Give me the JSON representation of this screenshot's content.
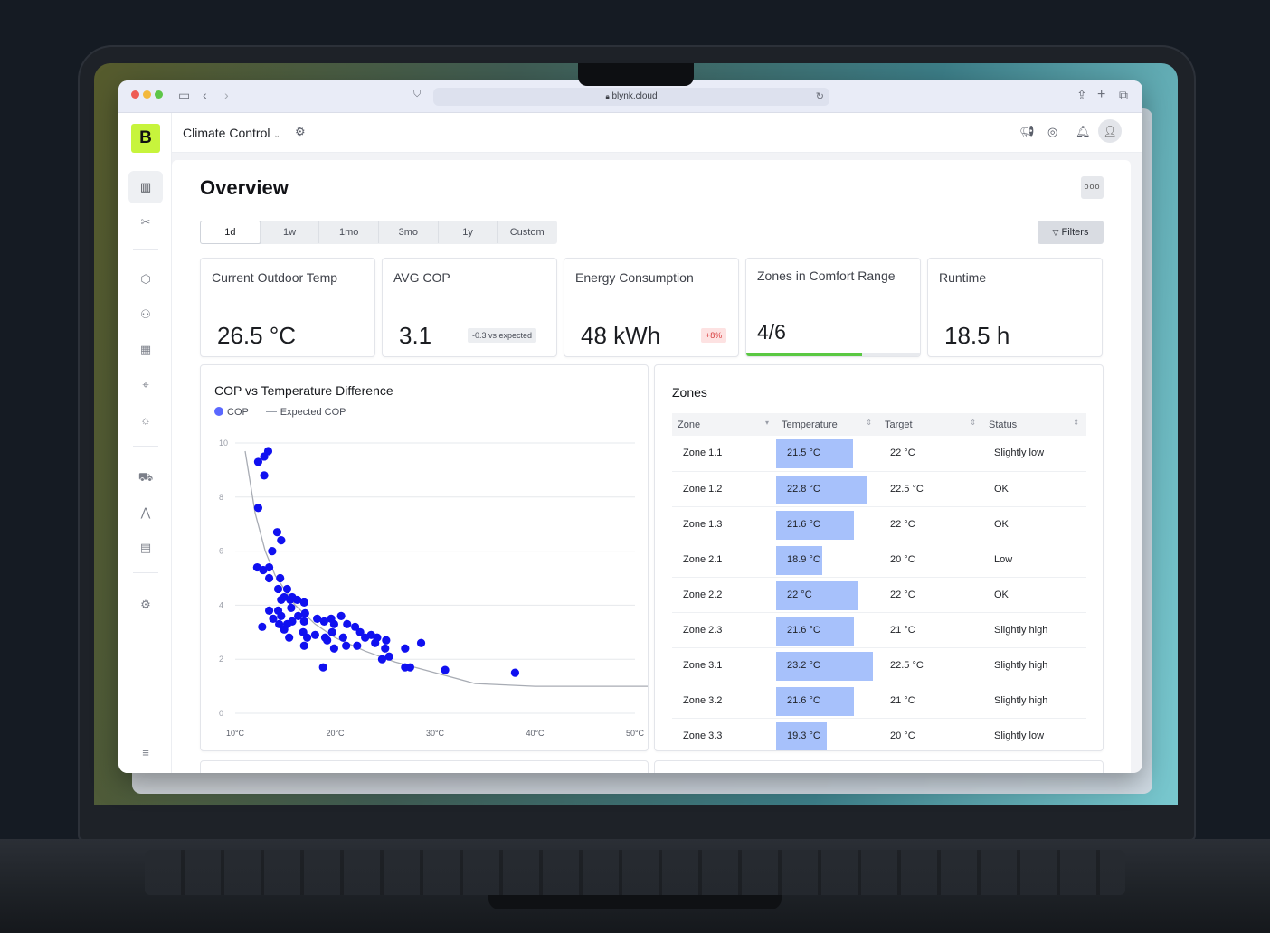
{
  "browser": {
    "url": "blynk.cloud"
  },
  "app": {
    "logo": "B",
    "title": "Climate Control",
    "page_title": "Overview",
    "filters_label": "Filters",
    "more_label": "ooo"
  },
  "ranges": [
    "1d",
    "1w",
    "1mo",
    "3mo",
    "1y",
    "Custom"
  ],
  "active_range": "1d",
  "kpis": {
    "outdoor": {
      "label": "Current Outdoor Temp",
      "value": "26.5 °C"
    },
    "cop": {
      "label": "AVG COP",
      "value": "3.1",
      "badge": "-0.3 vs expected"
    },
    "energy": {
      "label": "Energy Consumption",
      "value": "48 kWh",
      "badge": "+8%"
    },
    "zones": {
      "label": "Zones in Comfort Range",
      "value": "4/6",
      "progress": 0.6667
    },
    "runtime": {
      "label": "Runtime",
      "value": "18.5 h"
    }
  },
  "chart_data": {
    "type": "scatter",
    "title": "COP vs Temperature Difference",
    "series": [
      {
        "name": "COP",
        "color": "#1010f0",
        "points": [
          [
            12.3,
            9.3
          ],
          [
            12.9,
            9.5
          ],
          [
            13.3,
            9.7
          ],
          [
            12.9,
            8.8
          ],
          [
            12.3,
            7.6
          ],
          [
            14.2,
            6.7
          ],
          [
            14.6,
            6.4
          ],
          [
            13.7,
            6.0
          ],
          [
            12.2,
            5.4
          ],
          [
            12.8,
            5.3
          ],
          [
            13.4,
            5.4
          ],
          [
            13.4,
            5.0
          ],
          [
            14.5,
            5.0
          ],
          [
            14.3,
            4.6
          ],
          [
            15.2,
            4.6
          ],
          [
            14.6,
            4.2
          ],
          [
            14.9,
            4.3
          ],
          [
            15.5,
            4.2
          ],
          [
            15.7,
            4.3
          ],
          [
            16.2,
            4.2
          ],
          [
            16.9,
            4.1
          ],
          [
            15.6,
            3.9
          ],
          [
            14.3,
            3.8
          ],
          [
            13.4,
            3.8
          ],
          [
            13.8,
            3.5
          ],
          [
            14.6,
            3.6
          ],
          [
            14.4,
            3.3
          ],
          [
            15.2,
            3.3
          ],
          [
            15.7,
            3.4
          ],
          [
            16.3,
            3.6
          ],
          [
            17.0,
            3.7
          ],
          [
            18.2,
            3.5
          ],
          [
            19.6,
            3.5
          ],
          [
            20.6,
            3.6
          ],
          [
            12.7,
            3.2
          ],
          [
            14.9,
            3.1
          ],
          [
            16.9,
            3.4
          ],
          [
            18.9,
            3.4
          ],
          [
            19.9,
            3.3
          ],
          [
            21.2,
            3.3
          ],
          [
            22.0,
            3.2
          ],
          [
            15.4,
            2.8
          ],
          [
            16.8,
            3.0
          ],
          [
            18.0,
            2.9
          ],
          [
            19.0,
            2.8
          ],
          [
            19.7,
            3.0
          ],
          [
            20.8,
            2.8
          ],
          [
            22.5,
            3.0
          ],
          [
            23.6,
            2.9
          ],
          [
            24.2,
            2.8
          ],
          [
            25.1,
            2.7
          ],
          [
            27.0,
            2.4
          ],
          [
            28.6,
            2.6
          ],
          [
            16.9,
            2.5
          ],
          [
            17.2,
            2.8
          ],
          [
            19.2,
            2.7
          ],
          [
            19.9,
            2.4
          ],
          [
            21.1,
            2.5
          ],
          [
            22.2,
            2.5
          ],
          [
            23.0,
            2.8
          ],
          [
            24.0,
            2.6
          ],
          [
            25.0,
            2.4
          ],
          [
            25.4,
            2.1
          ],
          [
            24.7,
            2.0
          ],
          [
            27.5,
            1.7
          ],
          [
            27.0,
            1.7
          ],
          [
            18.8,
            1.7
          ],
          [
            31.0,
            1.6
          ],
          [
            38.0,
            1.5
          ]
        ]
      },
      {
        "name": "Expected COP",
        "color": "#a8acb4",
        "curve": [
          [
            11,
            9.7
          ],
          [
            12,
            7.4
          ],
          [
            13,
            6.0
          ],
          [
            14,
            5.1
          ],
          [
            16,
            4.0
          ],
          [
            18,
            3.3
          ],
          [
            20,
            2.8
          ],
          [
            23,
            2.3
          ],
          [
            26,
            1.9
          ],
          [
            30,
            1.5
          ],
          [
            34,
            1.1
          ],
          [
            40,
            1.0
          ],
          [
            47,
            1.0
          ],
          [
            52,
            1.0
          ]
        ]
      }
    ],
    "x_ticks": [
      "10°C",
      "20°C",
      "30°C",
      "40°C",
      "50°C"
    ],
    "x_tick_values": [
      10,
      20,
      30,
      40,
      50
    ],
    "y_ticks": [
      0,
      2,
      4,
      6,
      8,
      10
    ],
    "xlim": [
      10,
      50
    ],
    "ylim": [
      0,
      10
    ],
    "grid": true,
    "legend_placement": "top-left"
  },
  "zones_table": {
    "title": "Zones",
    "headers": [
      "Zone",
      "Temperature",
      "Target",
      "Status"
    ],
    "rows": [
      {
        "zone": "Zone 1.1",
        "temp": "21.5 °C",
        "temp_value": 21.5,
        "target": "22 °C",
        "status": "Slightly low"
      },
      {
        "zone": "Zone 1.2",
        "temp": "22.8 °C",
        "temp_value": 22.8,
        "target": "22.5 °C",
        "status": "OK"
      },
      {
        "zone": "Zone 1.3",
        "temp": "21.6 °C",
        "temp_value": 21.6,
        "target": "22 °C",
        "status": "OK"
      },
      {
        "zone": "Zone 2.1",
        "temp": "18.9 °C",
        "temp_value": 18.9,
        "target": "20 °C",
        "status": "Low"
      },
      {
        "zone": "Zone 2.2",
        "temp": "22 °C",
        "temp_value": 22.0,
        "target": "22 °C",
        "status": "OK"
      },
      {
        "zone": "Zone 2.3",
        "temp": "21.6 °C",
        "temp_value": 21.6,
        "target": "21 °C",
        "status": "Slightly high"
      },
      {
        "zone": "Zone 3.1",
        "temp": "23.2 °C",
        "temp_value": 23.2,
        "target": "22.5 °C",
        "status": "Slightly high"
      },
      {
        "zone": "Zone 3.2",
        "temp": "21.6 °C",
        "temp_value": 21.6,
        "target": "21 °C",
        "status": "Slightly high"
      },
      {
        "zone": "Zone 3.3",
        "temp": "19.3 °C",
        "temp_value": 19.3,
        "target": "20 °C",
        "status": "Slightly low"
      }
    ]
  }
}
